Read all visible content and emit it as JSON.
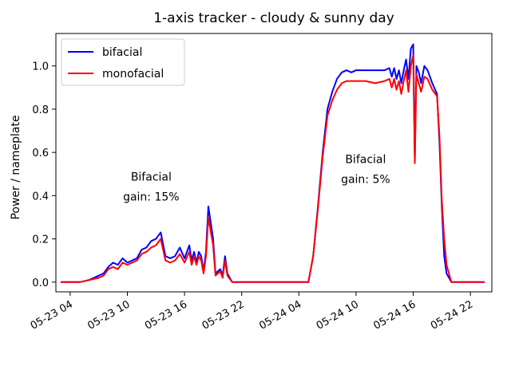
{
  "chart_data": {
    "type": "line",
    "title": "1-axis tracker - cloudy & sunny day",
    "xlabel": "",
    "ylabel": "Power / nameplate",
    "ylim": [
      -0.045,
      1.15
    ],
    "xlim": [
      "05-23 02:30",
      "05-25 00:15"
    ],
    "y_ticks": [
      0.0,
      0.2,
      0.4,
      0.6,
      0.8,
      1.0
    ],
    "y_tick_labels": [
      "0.0",
      "0.2",
      "0.4",
      "0.6",
      "0.8",
      "1.0"
    ],
    "x_ticks": [
      "05-23 04:00",
      "05-23 10:00",
      "05-23 16:00",
      "05-23 22:00",
      "05-24 04:00",
      "05-24 10:00",
      "05-24 16:00",
      "05-24 22:00"
    ],
    "x_tick_labels": [
      "05-23 04",
      "05-23 10",
      "05-23 16",
      "05-23 22",
      "05-24 04",
      "05-24 10",
      "05-24 16",
      "05-24 22"
    ],
    "legend_position": "top-left",
    "grid": false,
    "series": [
      {
        "name": "bifacial",
        "color": "#0000ff",
        "points": [
          [
            "05-23 03:00",
            0.0
          ],
          [
            "05-23 05:00",
            0.0
          ],
          [
            "05-23 06:00",
            0.01
          ],
          [
            "05-23 07:00",
            0.03
          ],
          [
            "05-23 07:30",
            0.04
          ],
          [
            "05-23 08:00",
            0.07
          ],
          [
            "05-23 08:30",
            0.09
          ],
          [
            "05-23 09:00",
            0.08
          ],
          [
            "05-23 09:30",
            0.11
          ],
          [
            "05-23 10:00",
            0.09
          ],
          [
            "05-23 10:30",
            0.1
          ],
          [
            "05-23 11:00",
            0.11
          ],
          [
            "05-23 11:30",
            0.15
          ],
          [
            "05-23 12:00",
            0.16
          ],
          [
            "05-23 12:30",
            0.19
          ],
          [
            "05-23 13:00",
            0.2
          ],
          [
            "05-23 13:30",
            0.23
          ],
          [
            "05-23 14:00",
            0.12
          ],
          [
            "05-23 14:30",
            0.11
          ],
          [
            "05-23 15:00",
            0.12
          ],
          [
            "05-23 15:30",
            0.16
          ],
          [
            "05-23 16:00",
            0.11
          ],
          [
            "05-23 16:30",
            0.17
          ],
          [
            "05-23 16:45",
            0.1
          ],
          [
            "05-23 17:00",
            0.14
          ],
          [
            "05-23 17:15",
            0.09
          ],
          [
            "05-23 17:30",
            0.14
          ],
          [
            "05-23 17:45",
            0.12
          ],
          [
            "05-23 18:00",
            0.05
          ],
          [
            "05-23 18:15",
            0.14
          ],
          [
            "05-23 18:30",
            0.35
          ],
          [
            "05-23 19:00",
            0.2
          ],
          [
            "05-23 19:15",
            0.04
          ],
          [
            "05-23 19:45",
            0.06
          ],
          [
            "05-23 20:00",
            0.03
          ],
          [
            "05-23 20:15",
            0.12
          ],
          [
            "05-23 20:30",
            0.04
          ],
          [
            "05-23 21:00",
            0.0
          ],
          [
            "05-24 05:00",
            0.0
          ],
          [
            "05-24 05:30",
            0.12
          ],
          [
            "05-24 06:00",
            0.35
          ],
          [
            "05-24 06:30",
            0.6
          ],
          [
            "05-24 07:00",
            0.8
          ],
          [
            "05-24 07:30",
            0.88
          ],
          [
            "05-24 08:00",
            0.94
          ],
          [
            "05-24 08:30",
            0.97
          ],
          [
            "05-24 09:00",
            0.98
          ],
          [
            "05-24 09:30",
            0.97
          ],
          [
            "05-24 10:00",
            0.98
          ],
          [
            "05-24 11:00",
            0.98
          ],
          [
            "05-24 12:00",
            0.98
          ],
          [
            "05-24 13:00",
            0.98
          ],
          [
            "05-24 13:30",
            0.99
          ],
          [
            "05-24 13:45",
            0.95
          ],
          [
            "05-24 14:00",
            0.99
          ],
          [
            "05-24 14:15",
            0.94
          ],
          [
            "05-24 14:30",
            0.98
          ],
          [
            "05-24 14:45",
            0.92
          ],
          [
            "05-24 15:00",
            0.98
          ],
          [
            "05-24 15:15",
            1.03
          ],
          [
            "05-24 15:30",
            0.94
          ],
          [
            "05-24 15:45",
            1.08
          ],
          [
            "05-24 16:00",
            1.1
          ],
          [
            "05-24 16:10",
            0.57
          ],
          [
            "05-24 16:20",
            1.0
          ],
          [
            "05-24 16:35",
            0.97
          ],
          [
            "05-24 16:50",
            0.92
          ],
          [
            "05-24 17:10",
            1.0
          ],
          [
            "05-24 17:30",
            0.98
          ],
          [
            "05-24 18:00",
            0.92
          ],
          [
            "05-24 18:30",
            0.87
          ],
          [
            "05-24 18:45",
            0.65
          ],
          [
            "05-24 19:00",
            0.35
          ],
          [
            "05-24 19:15",
            0.12
          ],
          [
            "05-24 19:30",
            0.04
          ],
          [
            "05-24 20:00",
            0.0
          ],
          [
            "05-24 23:30",
            0.0
          ]
        ]
      },
      {
        "name": "monofacial",
        "color": "#ff0000",
        "points": [
          [
            "05-23 03:00",
            0.0
          ],
          [
            "05-23 05:00",
            0.0
          ],
          [
            "05-23 06:00",
            0.01
          ],
          [
            "05-23 07:00",
            0.02
          ],
          [
            "05-23 07:30",
            0.03
          ],
          [
            "05-23 08:00",
            0.06
          ],
          [
            "05-23 08:30",
            0.07
          ],
          [
            "05-23 09:00",
            0.06
          ],
          [
            "05-23 09:30",
            0.09
          ],
          [
            "05-23 10:00",
            0.08
          ],
          [
            "05-23 10:30",
            0.09
          ],
          [
            "05-23 11:00",
            0.1
          ],
          [
            "05-23 11:30",
            0.13
          ],
          [
            "05-23 12:00",
            0.14
          ],
          [
            "05-23 12:30",
            0.16
          ],
          [
            "05-23 13:00",
            0.17
          ],
          [
            "05-23 13:30",
            0.2
          ],
          [
            "05-23 14:00",
            0.1
          ],
          [
            "05-23 14:30",
            0.09
          ],
          [
            "05-23 15:00",
            0.1
          ],
          [
            "05-23 15:30",
            0.13
          ],
          [
            "05-23 16:00",
            0.09
          ],
          [
            "05-23 16:30",
            0.14
          ],
          [
            "05-23 16:45",
            0.08
          ],
          [
            "05-23 17:00",
            0.12
          ],
          [
            "05-23 17:15",
            0.08
          ],
          [
            "05-23 17:30",
            0.12
          ],
          [
            "05-23 17:45",
            0.1
          ],
          [
            "05-23 18:00",
            0.04
          ],
          [
            "05-23 18:15",
            0.12
          ],
          [
            "05-23 18:30",
            0.3
          ],
          [
            "05-23 19:00",
            0.17
          ],
          [
            "05-23 19:15",
            0.03
          ],
          [
            "05-23 19:45",
            0.05
          ],
          [
            "05-23 20:00",
            0.02
          ],
          [
            "05-23 20:15",
            0.1
          ],
          [
            "05-23 20:30",
            0.03
          ],
          [
            "05-23 21:00",
            0.0
          ],
          [
            "05-24 05:00",
            0.0
          ],
          [
            "05-24 05:30",
            0.12
          ],
          [
            "05-24 06:00",
            0.34
          ],
          [
            "05-24 06:30",
            0.58
          ],
          [
            "05-24 07:00",
            0.77
          ],
          [
            "05-24 07:30",
            0.84
          ],
          [
            "05-24 08:00",
            0.89
          ],
          [
            "05-24 08:30",
            0.92
          ],
          [
            "05-24 09:00",
            0.93
          ],
          [
            "05-24 09:30",
            0.93
          ],
          [
            "05-24 10:00",
            0.93
          ],
          [
            "05-24 11:00",
            0.93
          ],
          [
            "05-24 12:00",
            0.92
          ],
          [
            "05-24 13:00",
            0.93
          ],
          [
            "05-24 13:30",
            0.94
          ],
          [
            "05-24 13:45",
            0.9
          ],
          [
            "05-24 14:00",
            0.94
          ],
          [
            "05-24 14:15",
            0.89
          ],
          [
            "05-24 14:30",
            0.93
          ],
          [
            "05-24 14:45",
            0.87
          ],
          [
            "05-24 15:00",
            0.93
          ],
          [
            "05-24 15:15",
            0.98
          ],
          [
            "05-24 15:30",
            0.88
          ],
          [
            "05-24 15:45",
            1.0
          ],
          [
            "05-24 16:00",
            1.05
          ],
          [
            "05-24 16:10",
            0.55
          ],
          [
            "05-24 16:20",
            0.96
          ],
          [
            "05-24 16:35",
            0.92
          ],
          [
            "05-24 16:50",
            0.88
          ],
          [
            "05-24 17:10",
            0.95
          ],
          [
            "05-24 17:30",
            0.94
          ],
          [
            "05-24 18:00",
            0.89
          ],
          [
            "05-24 18:30",
            0.86
          ],
          [
            "05-24 18:45",
            0.68
          ],
          [
            "05-24 19:00",
            0.38
          ],
          [
            "05-24 19:15",
            0.2
          ],
          [
            "05-24 19:30",
            0.08
          ],
          [
            "05-24 20:00",
            0.0
          ],
          [
            "05-24 23:30",
            0.0
          ]
        ]
      }
    ],
    "annotations": [
      {
        "lines": [
          "Bifacial",
          "gain: 15%"
        ],
        "x": "05-23 12:30",
        "y": 0.47
      },
      {
        "lines": [
          "Bifacial",
          "gain: 5%"
        ],
        "x": "05-24 11:00",
        "y": 0.55
      }
    ]
  }
}
